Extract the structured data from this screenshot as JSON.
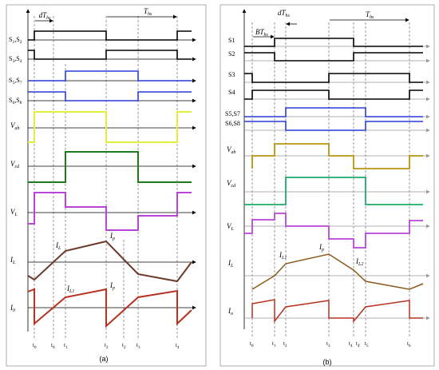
{
  "panel_a": {
    "caption": "(a)",
    "dt": "dT",
    "dt_sub": "hs",
    "t": "T",
    "t_sub": "hs",
    "signals": [
      {
        "label": "S",
        "sub1": "1",
        "sep": ",S",
        "sub2": "2"
      },
      {
        "label": "S",
        "sub1": "3",
        "sep": ",S",
        "sub2": "4"
      },
      {
        "label": "S",
        "sub1": "5",
        "sep": ",S",
        "sub2": "7"
      },
      {
        "label": "S",
        "sub1": "6",
        "sep": ",S",
        "sub2": "8"
      }
    ],
    "vab": "V",
    "vab_sub": "ab",
    "vcd": "V",
    "vcd_sub": "cd",
    "vl": "V",
    "vl_sub": "L",
    "il": "I",
    "il_sub": "L",
    "io": "I",
    "io_sub": "0",
    "il_peak": "I",
    "il_peak_sub": "L",
    "ip": "I",
    "ip_sub": "p",
    "il1": "I",
    "il1_sub": "L1",
    "ip2": "I",
    "ip2_sub": "p",
    "ticks": [
      {
        "t": "t",
        "s": "0"
      },
      {
        "t": "t",
        "s": "0"
      },
      {
        "t": "t",
        "s": "1"
      },
      {
        "t": "t",
        "s": "2"
      },
      {
        "t": "t",
        "s": "2"
      },
      {
        "t": "t",
        "s": "3"
      },
      {
        "t": "t",
        "s": "4"
      }
    ],
    "colors": {
      "gate_black": "#000000",
      "gate_blue": "#2a3bd6",
      "vab": "#e3ee3a",
      "vcd": "#1f7a1f",
      "vl": "#b845d8",
      "il": "#6b3a2a",
      "io": "#b83020"
    }
  },
  "panel_b": {
    "caption": "(b)",
    "dt": "dT",
    "dt_sub": "hs",
    "bt": "BT",
    "bt_sub": "hs",
    "t": "T",
    "t_sub": "hs",
    "signals": [
      "S1",
      "S2",
      "S3",
      "S4",
      "S5,S7",
      "S6,S8"
    ],
    "vab": "V",
    "vab_sub": "ab",
    "vcd": "V",
    "vcd_sub": "cd",
    "vl": "V",
    "vl_sub": "L",
    "il": "I",
    "il_sub": "L",
    "io": "I",
    "io_sub": "o",
    "il1": "I",
    "il1_sub": "L1",
    "ip": "I",
    "ip_sub": "p",
    "il2": "I",
    "il2_sub": "L2",
    "ticks": [
      {
        "t": "t",
        "s": "0"
      },
      {
        "t": "t",
        "s": "1"
      },
      {
        "t": "t",
        "s": "2"
      },
      {
        "t": "t",
        "s": "3"
      },
      {
        "t": "t",
        "s": "4"
      },
      {
        "t": "t",
        "s": "4'"
      },
      {
        "t": "t",
        "s": "5"
      },
      {
        "t": "t",
        "s": "6"
      }
    ],
    "colors": {
      "gate_black": "#000000",
      "gate_blue": "#2a3bd6",
      "vab": "#b8960c",
      "vcd": "#22a86a",
      "vl": "#b845d8",
      "il": "#8a5a1a",
      "io": "#b83020"
    }
  }
}
